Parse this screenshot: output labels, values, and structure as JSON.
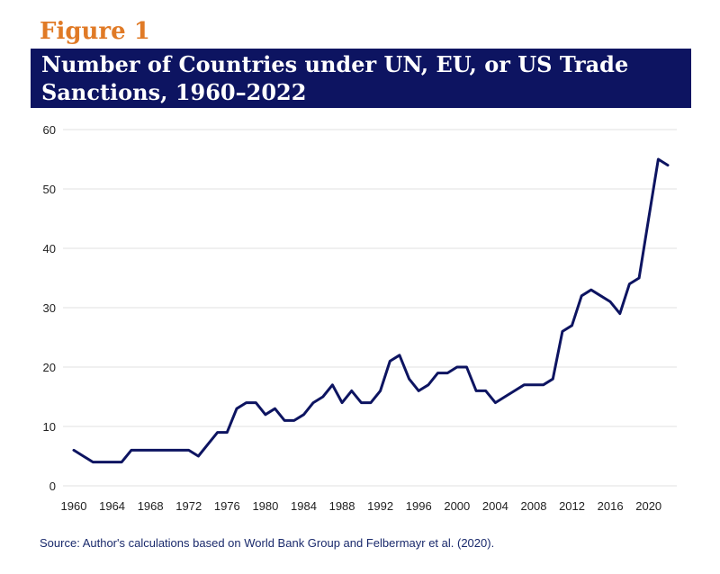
{
  "figure_label": "Figure 1",
  "source": "Source: Author's calculations based on World Bank Group and Felbermayr et al. (2020).",
  "colors": {
    "accent": "#E07A26",
    "title_band": "#0D1461",
    "line": "#0D1461"
  },
  "chart_data": {
    "type": "line",
    "title": "Number of Countries under UN, EU, or US Trade Sanctions, 1960–2022",
    "title_lines": [
      "Number of Countries under UN, EU, or US Trade",
      "Sanctions, 1960–2022"
    ],
    "xlabel": "",
    "ylabel": "",
    "xlim": [
      1960,
      2022
    ],
    "ylim": [
      0,
      60
    ],
    "grid": true,
    "xticks": [
      1960,
      1964,
      1968,
      1972,
      1976,
      1980,
      1984,
      1988,
      1992,
      1996,
      2000,
      2004,
      2008,
      2012,
      2016,
      2020
    ],
    "yticks": [
      0,
      10,
      20,
      30,
      40,
      50,
      60
    ],
    "x": [
      1960,
      1961,
      1962,
      1963,
      1964,
      1965,
      1966,
      1967,
      1968,
      1969,
      1970,
      1971,
      1972,
      1973,
      1974,
      1975,
      1976,
      1977,
      1978,
      1979,
      1980,
      1981,
      1982,
      1983,
      1984,
      1985,
      1986,
      1987,
      1988,
      1989,
      1990,
      1991,
      1992,
      1993,
      1994,
      1995,
      1996,
      1997,
      1998,
      1999,
      2000,
      2001,
      2002,
      2003,
      2004,
      2005,
      2006,
      2007,
      2008,
      2009,
      2010,
      2011,
      2012,
      2013,
      2014,
      2015,
      2016,
      2017,
      2018,
      2019,
      2020,
      2021,
      2022
    ],
    "values": [
      6,
      5,
      4,
      4,
      4,
      4,
      6,
      6,
      6,
      6,
      6,
      6,
      6,
      5,
      7,
      9,
      9,
      13,
      14,
      14,
      12,
      13,
      11,
      11,
      12,
      14,
      15,
      17,
      14,
      16,
      14,
      14,
      16,
      21,
      22,
      18,
      16,
      17,
      19,
      19,
      20,
      20,
      16,
      16,
      14,
      15,
      16,
      17,
      17,
      17,
      18,
      26,
      27,
      32,
      33,
      32,
      31,
      29,
      34,
      35,
      45,
      55,
      54
    ]
  }
}
